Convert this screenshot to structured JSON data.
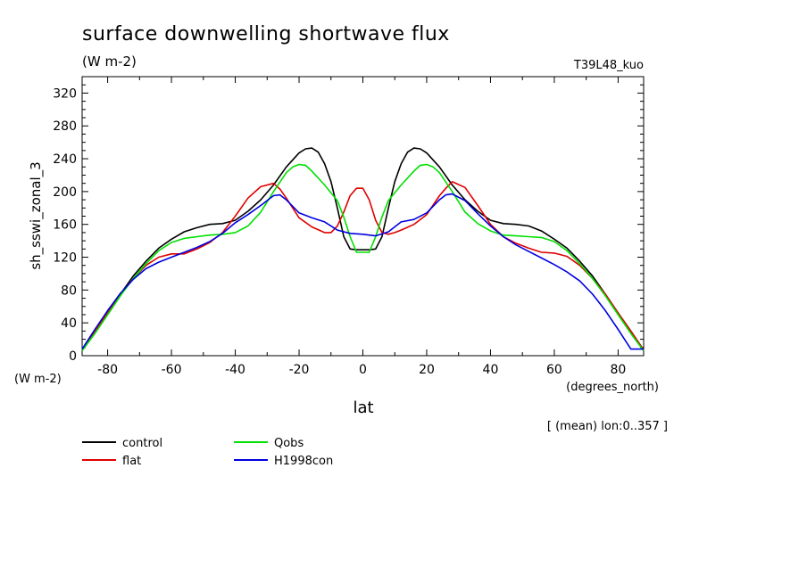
{
  "header": {
    "title": "surface downwelling shortwave flux",
    "units": "(W m-2)",
    "run_id": "T39L48_kuo"
  },
  "axes": {
    "ylabel": "sh_sswi_zonal_3",
    "yunits": "(W m-2)",
    "xlabel": "lat",
    "xunits": "(degrees_north)"
  },
  "footnote": "[ (mean) lon:0..357 ]",
  "colors": {
    "control": "#000000",
    "flat": "#e00000",
    "Qobs": "#00e000",
    "H1998con": "#0000e0"
  },
  "chart_data": {
    "type": "line",
    "title": "surface downwelling shortwave flux",
    "xlabel": "lat",
    "ylabel": "sh_sswi_zonal_3",
    "xlim": [
      -88,
      88
    ],
    "ylim": [
      0,
      340
    ],
    "xticks": [
      -80,
      -60,
      -40,
      -20,
      0,
      20,
      40,
      60,
      80
    ],
    "yticks": [
      0,
      40,
      80,
      120,
      160,
      200,
      240,
      280,
      320
    ],
    "legend": "bottom-left",
    "series": [
      {
        "name": "control",
        "color": "#000000",
        "x": [
          -88,
          -84,
          -80,
          -76,
          -72,
          -68,
          -64,
          -60,
          -56,
          -52,
          -48,
          -44,
          -40,
          -36,
          -32,
          -28,
          -24,
          -20,
          -18,
          -16,
          -14,
          -12,
          -10,
          -8,
          -6,
          -4,
          -2,
          0,
          2,
          4,
          6,
          8,
          10,
          12,
          14,
          16,
          18,
          20,
          24,
          28,
          32,
          36,
          40,
          44,
          48,
          52,
          56,
          60,
          64,
          68,
          72,
          76,
          80,
          84,
          88
        ],
        "y": [
          7,
          30,
          52,
          75,
          97,
          115,
          131,
          142,
          151,
          156,
          160,
          161,
          165,
          176,
          190,
          208,
          230,
          247,
          252,
          253,
          248,
          234,
          212,
          180,
          145,
          130,
          129,
          129,
          129,
          130,
          145,
          180,
          212,
          234,
          248,
          253,
          252,
          247,
          230,
          208,
          190,
          176,
          165,
          161,
          160,
          158,
          152,
          142,
          131,
          115,
          97,
          75,
          52,
          30,
          7
        ]
      },
      {
        "name": "flat",
        "color": "#e00000",
        "x": [
          -88,
          -84,
          -80,
          -76,
          -72,
          -68,
          -64,
          -60,
          -56,
          -52,
          -48,
          -44,
          -40,
          -36,
          -32,
          -28,
          -26,
          -24,
          -20,
          -16,
          -12,
          -10,
          -8,
          -6,
          -4,
          -2,
          0,
          2,
          4,
          6,
          8,
          10,
          12,
          16,
          20,
          24,
          26,
          28,
          32,
          36,
          40,
          44,
          48,
          52,
          56,
          60,
          64,
          68,
          72,
          76,
          80,
          84,
          88
        ],
        "y": [
          7,
          30,
          52,
          75,
          94,
          110,
          120,
          124,
          124,
          130,
          138,
          150,
          170,
          192,
          206,
          210,
          203,
          192,
          168,
          157,
          150,
          150,
          158,
          175,
          195,
          204,
          204,
          190,
          165,
          150,
          148,
          150,
          153,
          160,
          172,
          195,
          204,
          212,
          205,
          183,
          160,
          145,
          137,
          131,
          126,
          125,
          121,
          110,
          94,
          75,
          52,
          30,
          7
        ]
      },
      {
        "name": "Qobs",
        "color": "#00e000",
        "x": [
          -88,
          -84,
          -80,
          -76,
          -72,
          -68,
          -64,
          -60,
          -56,
          -52,
          -48,
          -44,
          -40,
          -36,
          -32,
          -28,
          -24,
          -22,
          -20,
          -18,
          -16,
          -12,
          -8,
          -6,
          -4,
          -2,
          0,
          2,
          4,
          6,
          8,
          12,
          16,
          18,
          20,
          22,
          24,
          28,
          32,
          36,
          40,
          44,
          48,
          52,
          56,
          60,
          64,
          68,
          72,
          76,
          80,
          84,
          88
        ],
        "y": [
          6,
          27,
          50,
          73,
          94,
          112,
          128,
          138,
          143,
          145,
          147,
          148,
          150,
          158,
          175,
          200,
          223,
          230,
          233,
          232,
          225,
          208,
          189,
          169,
          145,
          126,
          126,
          126,
          145,
          169,
          189,
          208,
          225,
          232,
          233,
          230,
          223,
          200,
          175,
          161,
          152,
          147,
          146,
          145,
          144,
          139,
          128,
          112,
          94,
          73,
          50,
          27,
          6
        ]
      },
      {
        "name": "H1998con",
        "color": "#0000e0",
        "x": [
          -88,
          -84,
          -80,
          -76,
          -72,
          -68,
          -64,
          -60,
          -56,
          -52,
          -48,
          -44,
          -40,
          -36,
          -32,
          -28,
          -26,
          -24,
          -20,
          -16,
          -12,
          -8,
          -4,
          0,
          4,
          8,
          12,
          16,
          20,
          24,
          26,
          28,
          32,
          36,
          40,
          44,
          48,
          52,
          56,
          60,
          64,
          68,
          72,
          76,
          80,
          84,
          88
        ],
        "y": [
          8,
          32,
          55,
          76,
          93,
          106,
          114,
          120,
          126,
          132,
          139,
          149,
          162,
          172,
          183,
          195,
          196,
          190,
          174,
          168,
          163,
          153,
          149,
          148,
          146,
          151,
          163,
          166,
          174,
          190,
          196,
          197,
          189,
          173,
          158,
          145,
          135,
          127,
          119,
          111,
          102,
          91,
          75,
          55,
          32,
          8,
          8
        ]
      }
    ]
  }
}
